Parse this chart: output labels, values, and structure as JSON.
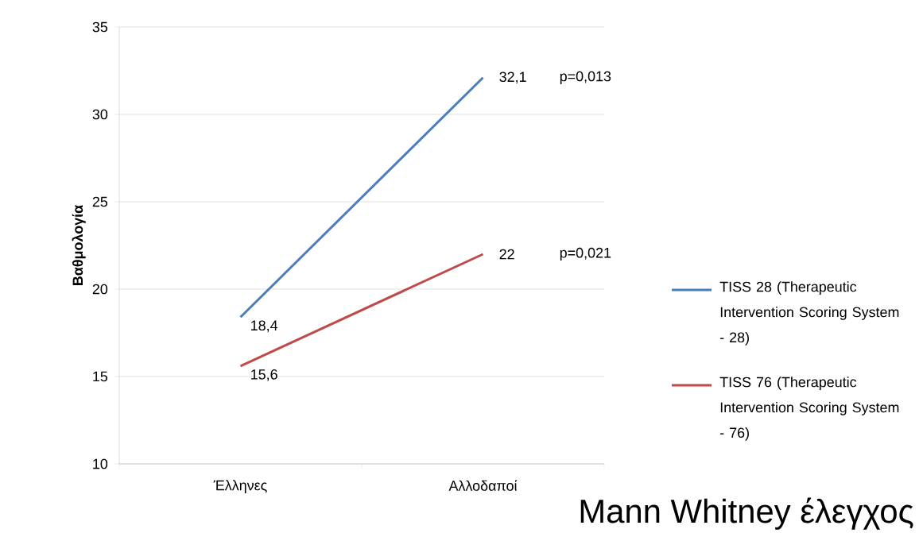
{
  "chart_data": {
    "type": "line",
    "ylabel": "Βαθμολογία",
    "categories": [
      "Έλληνες",
      "Αλλοδαποί"
    ],
    "series": [
      {
        "name": "TISS 28 (Therapeutic Intervention Scoring System - 28)",
        "color": "#4a7ebb",
        "values": [
          18.4,
          32.1
        ],
        "value_labels": [
          "18,4",
          "32,1"
        ]
      },
      {
        "name": "TISS 76 (Therapeutic Intervention Scoring System - 76)",
        "color": "#be4b48",
        "values": [
          15.6,
          22
        ],
        "value_labels": [
          "15,6",
          "22"
        ]
      }
    ],
    "ylim": [
      10,
      35
    ],
    "yticks": [
      10,
      15,
      20,
      25,
      30,
      35
    ],
    "grid": "y",
    "legend": "right",
    "marker": "none",
    "annotations": [
      "p=0,013",
      "p=0,021",
      "Mann Whitney έλεγχος"
    ]
  }
}
